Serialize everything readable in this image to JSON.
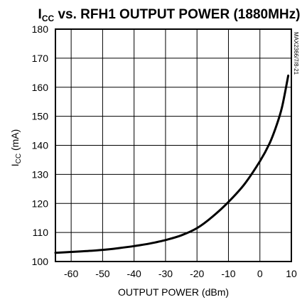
{
  "chart_data": {
    "type": "line",
    "title_prefix": "I",
    "title_sub": "CC",
    "title_rest": " vs. RFH1 OUTPUT POWER (1880MHz)",
    "xlabel": "OUTPUT POWER (dBm)",
    "ylabel_prefix": "I",
    "ylabel_sub": "CC",
    "ylabel_rest": " (mA)",
    "side_note": "MAX2366/7/8-21",
    "xlim": [
      -65,
      10
    ],
    "ylim": [
      100,
      180
    ],
    "xticks": [
      -60,
      -50,
      -40,
      -30,
      -20,
      -10,
      0,
      10
    ],
    "yticks": [
      100,
      110,
      120,
      130,
      140,
      150,
      160,
      170,
      180
    ],
    "grid": true,
    "series": [
      {
        "x": [
          -65,
          -60,
          -55,
          -50,
          -45,
          -40,
          -35,
          -30,
          -25,
          -20,
          -15,
          -10,
          -5,
          0,
          3,
          5,
          7,
          9
        ],
        "y": [
          103,
          103.3,
          103.6,
          104,
          104.6,
          105.3,
          106.2,
          107.4,
          109,
          111.5,
          115.5,
          120.5,
          126.5,
          134.5,
          140.5,
          146,
          153,
          164
        ]
      }
    ]
  }
}
